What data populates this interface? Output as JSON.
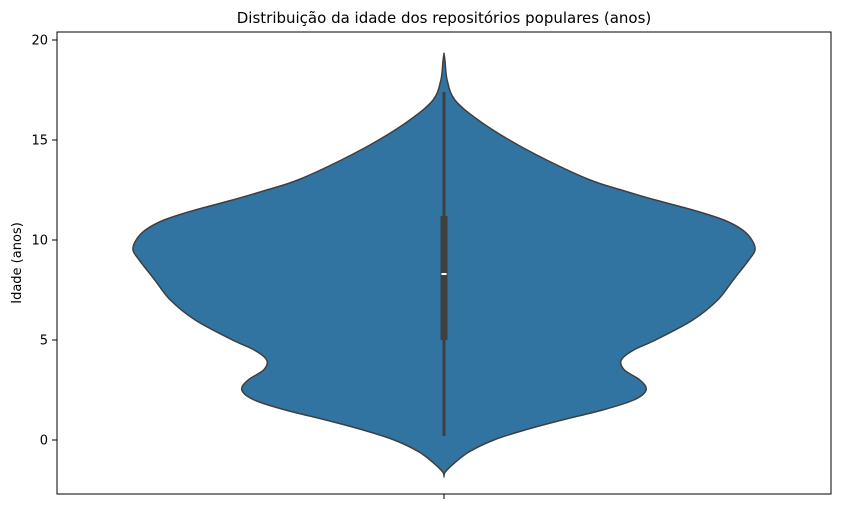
{
  "chart_data": {
    "type": "violin",
    "title": "Distribuição da idade dos repositórios populares (anos)",
    "xlabel": "",
    "ylabel": "Idade (anos)",
    "ylim": [
      -2.7,
      20.4
    ],
    "y_ticks": [
      0,
      5,
      10,
      15,
      20
    ],
    "x_ticks": [
      ""
    ],
    "grid": false,
    "colors": {
      "violin_fill": "#3274a1",
      "violin_edge": "#3f3f3f",
      "box": "#3f3f3f",
      "median": "#ffffff"
    },
    "density_profile": [
      {
        "y": -1.8,
        "halfwidth": 0.0
      },
      {
        "y": -1.6,
        "halfwidth": 0.004
      },
      {
        "y": -1.2,
        "halfwidth": 0.03
      },
      {
        "y": -0.6,
        "halfwidth": 0.08
      },
      {
        "y": 0.0,
        "halfwidth": 0.16
      },
      {
        "y": 0.5,
        "halfwidth": 0.26
      },
      {
        "y": 1.0,
        "halfwidth": 0.38
      },
      {
        "y": 1.5,
        "halfwidth": 0.51
      },
      {
        "y": 2.0,
        "halfwidth": 0.61
      },
      {
        "y": 2.5,
        "halfwidth": 0.65
      },
      {
        "y": 3.0,
        "halfwidth": 0.63
      },
      {
        "y": 3.5,
        "halfwidth": 0.58
      },
      {
        "y": 4.0,
        "halfwidth": 0.57
      },
      {
        "y": 4.5,
        "halfwidth": 0.61
      },
      {
        "y": 5.0,
        "halfwidth": 0.68
      },
      {
        "y": 6.0,
        "halfwidth": 0.8
      },
      {
        "y": 7.0,
        "halfwidth": 0.88
      },
      {
        "y": 8.0,
        "halfwidth": 0.93
      },
      {
        "y": 9.0,
        "halfwidth": 0.98
      },
      {
        "y": 9.5,
        "halfwidth": 1.0
      },
      {
        "y": 10.0,
        "halfwidth": 0.99
      },
      {
        "y": 10.5,
        "halfwidth": 0.96
      },
      {
        "y": 11.0,
        "halfwidth": 0.9
      },
      {
        "y": 11.5,
        "halfwidth": 0.8
      },
      {
        "y": 12.0,
        "halfwidth": 0.68
      },
      {
        "y": 12.5,
        "halfwidth": 0.57
      },
      {
        "y": 13.0,
        "halfwidth": 0.47
      },
      {
        "y": 14.0,
        "halfwidth": 0.33
      },
      {
        "y": 15.0,
        "halfwidth": 0.21
      },
      {
        "y": 16.0,
        "halfwidth": 0.11
      },
      {
        "y": 17.0,
        "halfwidth": 0.035
      },
      {
        "y": 18.0,
        "halfwidth": 0.01
      },
      {
        "y": 19.0,
        "halfwidth": 0.003
      },
      {
        "y": 19.3,
        "halfwidth": 0.0
      }
    ],
    "box": {
      "whisker_low": 0.2,
      "q1": 5.0,
      "median": 8.3,
      "q3": 11.2,
      "whisker_high": 17.4
    }
  }
}
